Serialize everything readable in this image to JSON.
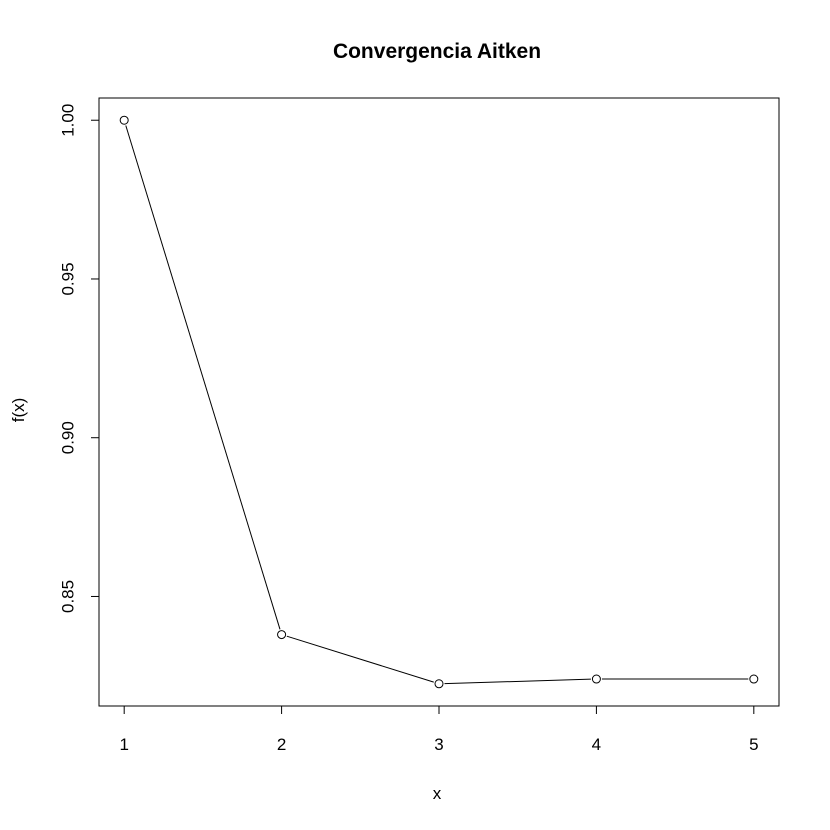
{
  "chart_data": {
    "type": "line",
    "title": "Convergencia Aitken",
    "xlabel": "x",
    "ylabel": "f(x)",
    "x": [
      1,
      2,
      3,
      4,
      5
    ],
    "y": [
      1.0,
      0.838,
      0.8225,
      0.824,
      0.824
    ],
    "xlim": [
      0.84,
      5.16
    ],
    "ylim": [
      0.8155,
      1.007
    ],
    "xticks": [
      1,
      2,
      3,
      4,
      5
    ],
    "xtick_labels": [
      "1",
      "2",
      "3",
      "4",
      "5"
    ],
    "yticks": [
      0.85,
      0.9,
      0.95,
      1.0
    ],
    "ytick_labels": [
      "0.85",
      "0.90",
      "0.95",
      "1.00"
    ],
    "markers": "open-circle",
    "line_color": "#000000",
    "grid": false,
    "legend": "none"
  }
}
